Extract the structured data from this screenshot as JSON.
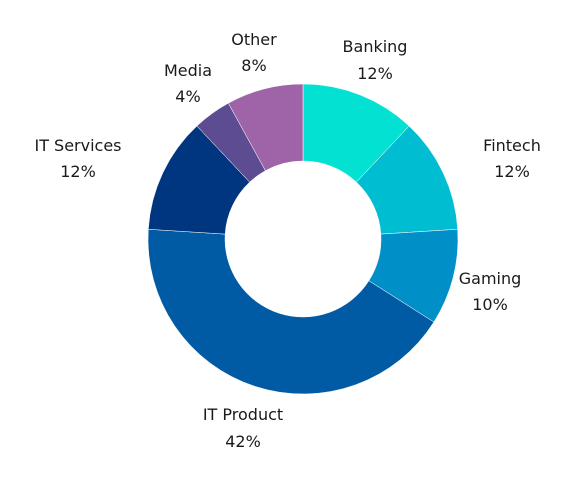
{
  "chart_data": {
    "type": "pie",
    "variant": "donut",
    "slices": [
      {
        "label": "Banking",
        "value": 12,
        "value_label": "12%",
        "color": "#03e2d2"
      },
      {
        "label": "Fintech",
        "value": 12,
        "value_label": "12%",
        "color": "#00bdd2"
      },
      {
        "label": "Gaming",
        "value": 10,
        "value_label": "10%",
        "color": "#0090c7"
      },
      {
        "label": "IT Product",
        "value": 42,
        "value_label": "42%",
        "color": "#005ba4"
      },
      {
        "label": "IT Services",
        "value": 12,
        "value_label": "12%",
        "color": "#00367f"
      },
      {
        "label": "Media",
        "value": 4,
        "value_label": "4%",
        "color": "#5e4c93"
      },
      {
        "label": "Other",
        "value": 8,
        "value_label": "8%",
        "color": "#9f64a8"
      }
    ],
    "start_angle": "12 o'clock",
    "direction": "clockwise"
  }
}
